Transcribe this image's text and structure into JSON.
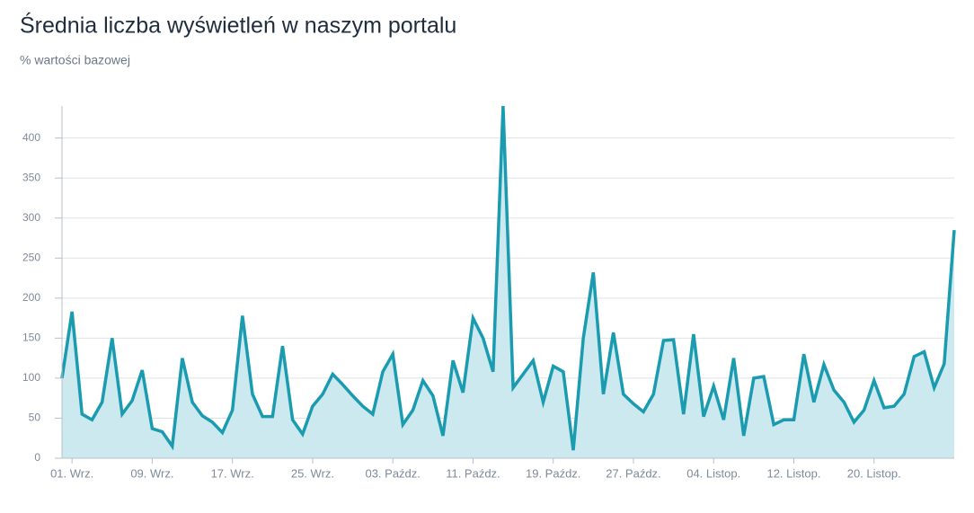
{
  "chart_data": {
    "type": "line",
    "title": "Średnia liczba wyświetleń w naszym portalu",
    "subtitle": "% wartości bazowej",
    "categories": [
      null,
      "01. Wrz.",
      null,
      null,
      null,
      null,
      null,
      null,
      null,
      "09. Wrz.",
      null,
      null,
      null,
      null,
      null,
      null,
      null,
      "17. Wrz.",
      null,
      null,
      null,
      null,
      null,
      null,
      null,
      "25. Wrz.",
      null,
      null,
      null,
      null,
      null,
      null,
      null,
      "03. Paźdz.",
      null,
      null,
      null,
      null,
      null,
      null,
      null,
      "11. Paźdz.",
      null,
      null,
      null,
      null,
      null,
      null,
      null,
      "19. Paźdz.",
      null,
      null,
      null,
      null,
      null,
      null,
      null,
      "27. Paźdz.",
      null,
      null,
      null,
      null,
      null,
      null,
      null,
      "04. Listop.",
      null,
      null,
      null,
      null,
      null,
      null,
      null,
      "12. Listop.",
      null,
      null,
      null,
      null,
      null,
      null,
      null,
      "20. Listop.",
      null,
      null,
      null,
      null,
      null,
      null,
      null,
      null
    ],
    "series": [
      {
        "name": "Średnia liczba wyświetleń",
        "color": "#1a9bb0",
        "fill": "#cbe9ef",
        "values": [
          100,
          183,
          55,
          48,
          70,
          150,
          55,
          72,
          110,
          37,
          33,
          15,
          125,
          70,
          53,
          45,
          32,
          60,
          178,
          80,
          52,
          52,
          140,
          48,
          30,
          65,
          80,
          105,
          92,
          78,
          65,
          55,
          108,
          130,
          42,
          60,
          97,
          78,
          28,
          122,
          82,
          175,
          150,
          108,
          440,
          88,
          105,
          122,
          70,
          115,
          108,
          10,
          150,
          232,
          80,
          157,
          80,
          68,
          58,
          80,
          147,
          148,
          55,
          155,
          52,
          90,
          48,
          125,
          28,
          100,
          102,
          42,
          48,
          48,
          130,
          70,
          117,
          85,
          70,
          45,
          60,
          97,
          63,
          65,
          80,
          127,
          133,
          88,
          118,
          285
        ]
      }
    ],
    "ylim": [
      0,
      440
    ],
    "yticks": [
      0,
      50,
      100,
      150,
      200,
      250,
      300,
      350,
      400
    ],
    "grid": true
  }
}
